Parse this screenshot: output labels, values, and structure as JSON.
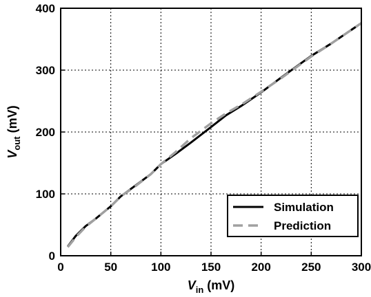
{
  "chart_data": {
    "type": "line",
    "xlabel": {
      "main": "V",
      "sub": "in",
      "unit": " (mV)"
    },
    "ylabel": {
      "main": "V",
      "sub": "out",
      "unit": " (mV)"
    },
    "xlim": [
      0,
      300
    ],
    "ylim": [
      0,
      400
    ],
    "xticks": [
      0,
      50,
      100,
      150,
      200,
      250,
      300
    ],
    "yticks": [
      0,
      100,
      200,
      300,
      400
    ],
    "grid": true,
    "legend_position": "bottom-right",
    "series": [
      {
        "name": "Simulation",
        "color": "#000000",
        "style": "solid",
        "x": [
          7,
          15,
          25,
          35,
          50,
          60,
          75,
          90,
          100,
          115,
          130,
          150,
          165,
          180,
          200,
          220,
          250,
          270,
          300
        ],
        "y": [
          15,
          32,
          48,
          60,
          80,
          96,
          114,
          132,
          148,
          165,
          183,
          208,
          227,
          242,
          264,
          288,
          323,
          343,
          376
        ]
      },
      {
        "name": "Prediction",
        "color": "#a0a0a0",
        "style": "dashed",
        "x": [
          7,
          15,
          25,
          35,
          50,
          60,
          75,
          90,
          100,
          115,
          130,
          150,
          165,
          180,
          200,
          220,
          250,
          270,
          300
        ],
        "y": [
          14,
          30,
          47,
          60,
          80,
          96,
          113,
          132,
          148,
          168,
          190,
          214,
          230,
          244,
          265,
          287,
          322,
          343,
          376
        ]
      }
    ]
  }
}
